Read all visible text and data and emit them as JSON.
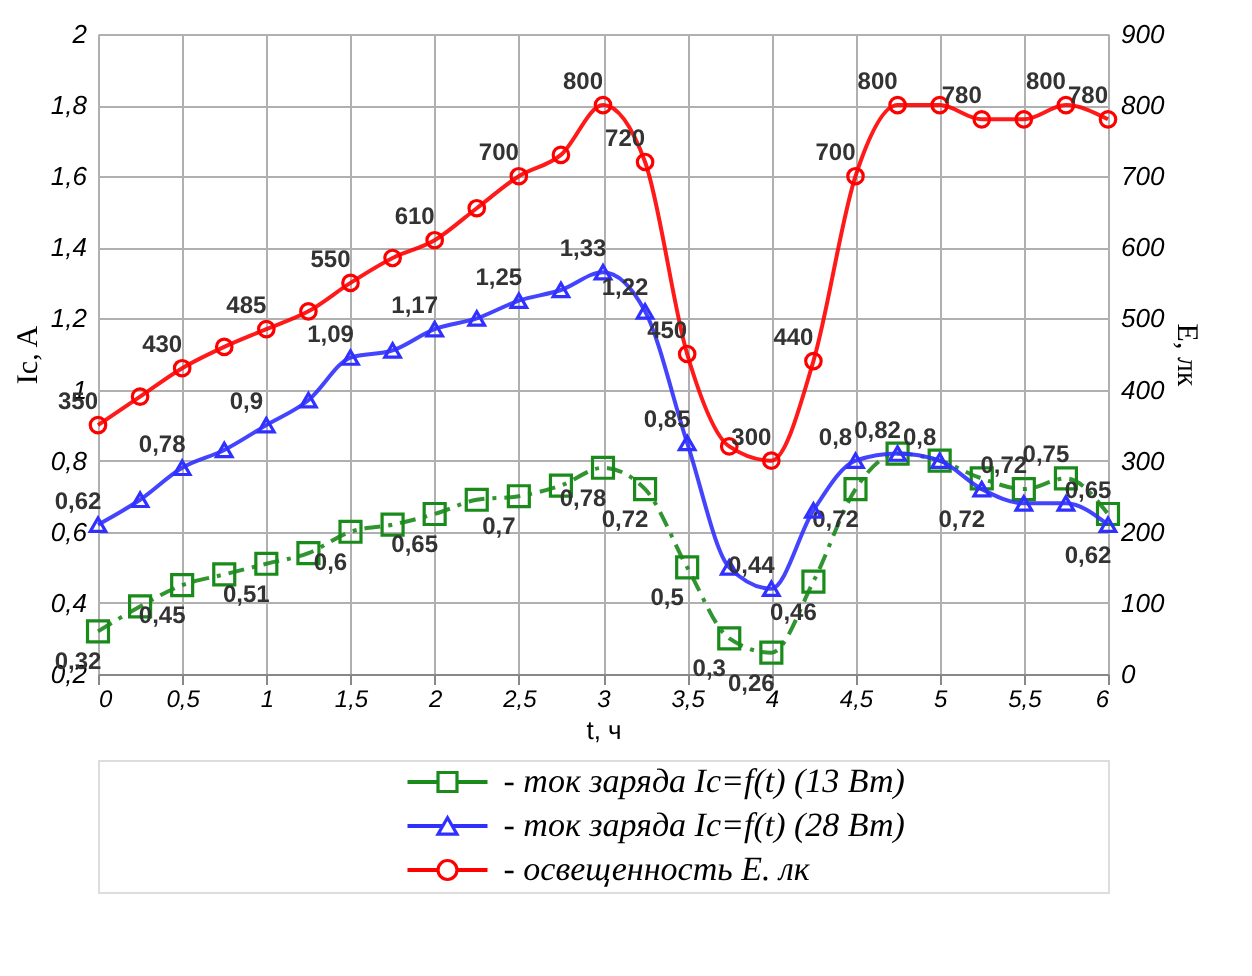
{
  "chart_data": {
    "type": "line",
    "xlabel": "t, ч",
    "ylabel": "Ic, A",
    "y2label": "Е, лк",
    "x": [
      0,
      0.25,
      0.5,
      0.75,
      1,
      1.25,
      1.5,
      1.75,
      2,
      2.25,
      2.5,
      2.75,
      3,
      3.25,
      3.5,
      3.75,
      4,
      4.25,
      4.5,
      4.75,
      5,
      5.25,
      5.5,
      5.75,
      6
    ],
    "xlim": [
      0,
      6
    ],
    "xticks": [
      {
        "value": 0,
        "label": "0"
      },
      {
        "value": 0.5,
        "label": "0,5"
      },
      {
        "value": 1,
        "label": "1"
      },
      {
        "value": 1.5,
        "label": "1,5"
      },
      {
        "value": 2,
        "label": "2"
      },
      {
        "value": 2.5,
        "label": "2,5"
      },
      {
        "value": 3,
        "label": "3"
      },
      {
        "value": 3.5,
        "label": "3,5"
      },
      {
        "value": 4,
        "label": "4"
      },
      {
        "value": 4.5,
        "label": "4,5"
      },
      {
        "value": 5,
        "label": "5"
      },
      {
        "value": 5.5,
        "label": "5,5"
      },
      {
        "value": 6,
        "label": "6"
      }
    ],
    "ylim": [
      0.2,
      2
    ],
    "yticks": [
      {
        "value": 0.2,
        "label": "0,2"
      },
      {
        "value": 0.4,
        "label": "0,4"
      },
      {
        "value": 0.6,
        "label": "0,6"
      },
      {
        "value": 0.8,
        "label": "0,8"
      },
      {
        "value": 1,
        "label": "1"
      },
      {
        "value": 1.2,
        "label": "1,2"
      },
      {
        "value": 1.4,
        "label": "1,4"
      },
      {
        "value": 1.6,
        "label": "1,6"
      },
      {
        "value": 1.8,
        "label": "1,8"
      },
      {
        "value": 2,
        "label": "2"
      }
    ],
    "y2lim": [
      0,
      900
    ],
    "y2ticks": [
      0,
      100,
      200,
      300,
      400,
      500,
      600,
      700,
      800,
      900
    ],
    "grid": true,
    "legend": "bottom",
    "series": [
      {
        "name": "- ток заряда Ic=f(t) (13 Вт)",
        "color": "#1a8a1a",
        "marker": "square",
        "line_style": "dashed",
        "values": [
          0.32,
          0.39,
          0.45,
          0.48,
          0.51,
          0.54,
          0.6,
          0.62,
          0.65,
          0.69,
          0.7,
          0.73,
          0.78,
          0.72,
          0.5,
          0.3,
          0.26,
          0.46,
          0.72,
          0.82,
          0.8,
          0.75,
          0.72,
          0.75,
          0.65
        ],
        "value_labels": [
          "0,32",
          null,
          "0,45",
          null,
          "0,51",
          null,
          "0,6",
          null,
          "0,65",
          null,
          "0,7",
          null,
          "0,78",
          "0,72",
          "0,5",
          "0,3",
          "0,26",
          "0,46",
          "0,72",
          null,
          "0,8",
          null,
          "0,72",
          "0,75",
          "0,65"
        ]
      },
      {
        "name": "- ток заряда Ic=f(t) (28 Вт)",
        "color": "#3030ff",
        "marker": "triangle",
        "line_style": "solid",
        "values": [
          0.62,
          0.69,
          0.78,
          0.83,
          0.9,
          0.97,
          1.09,
          1.11,
          1.17,
          1.2,
          1.25,
          1.28,
          1.33,
          1.22,
          0.85,
          0.5,
          0.44,
          0.66,
          0.8,
          0.82,
          0.8,
          0.72,
          0.68,
          0.68,
          0.62
        ],
        "value_labels": [
          "0,62",
          null,
          "0,78",
          null,
          "0,9",
          null,
          "1,09",
          null,
          "1,17",
          null,
          "1,25",
          null,
          "1,33",
          "1,22",
          "0,85",
          null,
          "0,44",
          null,
          "0,8",
          "0,82",
          null,
          "0,72",
          null,
          null,
          "0,62"
        ]
      },
      {
        "name": "- освещенность Е. лк",
        "color": "#ff0000",
        "marker": "circle",
        "line_style": "solid",
        "axis": "y2",
        "values": [
          350,
          390,
          430,
          460,
          485,
          510,
          550,
          585,
          610,
          655,
          700,
          730,
          800,
          720,
          450,
          320,
          300,
          440,
          700,
          800,
          800,
          780,
          780,
          800,
          780
        ],
        "value_labels": [
          "350",
          null,
          "430",
          null,
          "485",
          null,
          "550",
          null,
          "610",
          null,
          "700",
          null,
          "800",
          "720",
          "450",
          null,
          "300",
          "440",
          "700",
          "800",
          null,
          "780",
          null,
          "800",
          "780"
        ]
      }
    ]
  }
}
